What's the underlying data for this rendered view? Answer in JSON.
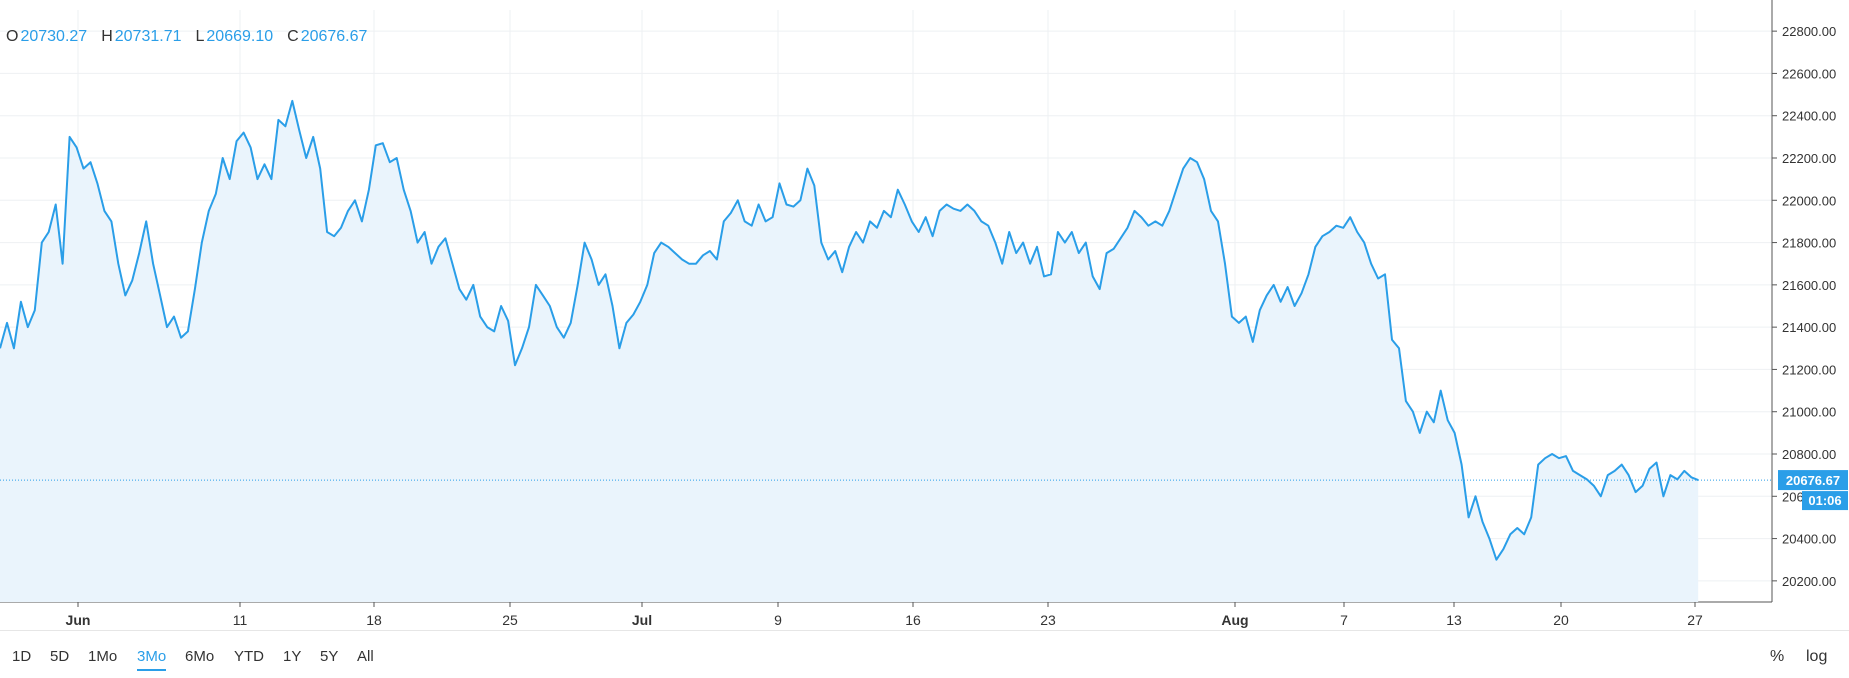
{
  "ohlc": {
    "open_label": "O",
    "open_value": "20730.27",
    "high_label": "H",
    "high_value": "20731.71",
    "low_label": "L",
    "low_value": "20669.10",
    "close_label": "C",
    "close_value": "20676.67"
  },
  "last_price_badge": "20676.67",
  "countdown_badge": "01:06",
  "range_buttons": [
    "1D",
    "5D",
    "1Mo",
    "3Mo",
    "6Mo",
    "YTD",
    "1Y",
    "5Y",
    "All"
  ],
  "active_range": "3Mo",
  "scale_buttons": {
    "percent": "%",
    "log": "log"
  },
  "colors": {
    "line": "#2a9ee8",
    "area": "#eaf4fc",
    "grid": "#eef0f3",
    "badge": "#2a9ee8"
  },
  "chart_data": {
    "type": "area",
    "x_tick_labels": [
      "Jun",
      "11",
      "18",
      "25",
      "Jul",
      "9",
      "16",
      "23",
      "Aug",
      "7",
      "13",
      "20",
      "27"
    ],
    "x_tick_bold": [
      "Jun",
      "Jul",
      "Aug"
    ],
    "y_tick_labels": [
      "20200.00",
      "20400.00",
      "20600.00",
      "20800.00",
      "21000.00",
      "21200.00",
      "21400.00",
      "21600.00",
      "21800.00",
      "22000.00",
      "22200.00",
      "22400.00",
      "22600.00",
      "22800.00"
    ],
    "ylim": [
      20100,
      22900
    ],
    "last_value": 20676.67,
    "x_index_range": [
      0,
      100
    ],
    "series": [
      {
        "values": [
          [
            0,
            21300
          ],
          [
            0.4,
            21420
          ],
          [
            0.8,
            21300
          ],
          [
            1.2,
            21520
          ],
          [
            1.6,
            21400
          ],
          [
            2.0,
            21480
          ],
          [
            2.4,
            21800
          ],
          [
            2.8,
            21850
          ],
          [
            3.2,
            21980
          ],
          [
            3.6,
            21700
          ],
          [
            4.0,
            22300
          ],
          [
            4.4,
            22250
          ],
          [
            4.8,
            22150
          ],
          [
            5.2,
            22180
          ],
          [
            5.6,
            22080
          ],
          [
            6.0,
            21950
          ],
          [
            6.4,
            21900
          ],
          [
            6.8,
            21700
          ],
          [
            7.2,
            21550
          ],
          [
            7.6,
            21620
          ],
          [
            8.0,
            21750
          ],
          [
            8.4,
            21900
          ],
          [
            8.8,
            21700
          ],
          [
            9.2,
            21550
          ],
          [
            9.6,
            21400
          ],
          [
            10.0,
            21450
          ],
          [
            10.4,
            21350
          ],
          [
            10.8,
            21380
          ],
          [
            11.2,
            21580
          ],
          [
            11.6,
            21800
          ],
          [
            12.0,
            21950
          ],
          [
            12.4,
            22030
          ],
          [
            12.8,
            22200
          ],
          [
            13.2,
            22100
          ],
          [
            13.6,
            22280
          ],
          [
            14.0,
            22320
          ],
          [
            14.4,
            22250
          ],
          [
            14.8,
            22100
          ],
          [
            15.2,
            22170
          ],
          [
            15.6,
            22100
          ],
          [
            16.0,
            22380
          ],
          [
            16.4,
            22350
          ],
          [
            16.8,
            22470
          ],
          [
            17.2,
            22330
          ],
          [
            17.6,
            22200
          ],
          [
            18.0,
            22300
          ],
          [
            18.4,
            22150
          ],
          [
            18.8,
            21850
          ],
          [
            19.2,
            21830
          ],
          [
            19.6,
            21870
          ],
          [
            20.0,
            21950
          ],
          [
            20.4,
            22000
          ],
          [
            20.8,
            21900
          ],
          [
            21.2,
            22050
          ],
          [
            21.6,
            22260
          ],
          [
            22.0,
            22270
          ],
          [
            22.4,
            22180
          ],
          [
            22.8,
            22200
          ],
          [
            23.2,
            22050
          ],
          [
            23.6,
            21950
          ],
          [
            24.0,
            21800
          ],
          [
            24.4,
            21850
          ],
          [
            24.8,
            21700
          ],
          [
            25.2,
            21780
          ],
          [
            25.6,
            21820
          ],
          [
            26.0,
            21700
          ],
          [
            26.4,
            21580
          ],
          [
            26.8,
            21530
          ],
          [
            27.2,
            21600
          ],
          [
            27.6,
            21450
          ],
          [
            28.0,
            21400
          ],
          [
            28.4,
            21380
          ],
          [
            28.8,
            21500
          ],
          [
            29.2,
            21430
          ],
          [
            29.6,
            21220
          ],
          [
            30.0,
            21300
          ],
          [
            30.4,
            21400
          ],
          [
            30.8,
            21600
          ],
          [
            31.2,
            21550
          ],
          [
            31.6,
            21500
          ],
          [
            32.0,
            21400
          ],
          [
            32.4,
            21350
          ],
          [
            32.8,
            21420
          ],
          [
            33.2,
            21600
          ],
          [
            33.6,
            21800
          ],
          [
            34.0,
            21720
          ],
          [
            34.4,
            21600
          ],
          [
            34.8,
            21650
          ],
          [
            35.2,
            21500
          ],
          [
            35.6,
            21300
          ],
          [
            36.0,
            21420
          ],
          [
            36.4,
            21460
          ],
          [
            36.8,
            21520
          ],
          [
            37.2,
            21600
          ],
          [
            37.6,
            21750
          ],
          [
            38.0,
            21800
          ],
          [
            38.4,
            21780
          ],
          [
            38.8,
            21750
          ],
          [
            39.2,
            21720
          ],
          [
            39.6,
            21700
          ],
          [
            40.0,
            21700
          ],
          [
            40.4,
            21740
          ],
          [
            40.8,
            21760
          ],
          [
            41.2,
            21720
          ],
          [
            41.6,
            21900
          ],
          [
            42.0,
            21940
          ],
          [
            42.4,
            22000
          ],
          [
            42.8,
            21900
          ],
          [
            43.2,
            21880
          ],
          [
            43.6,
            21980
          ],
          [
            44.0,
            21900
          ],
          [
            44.4,
            21920
          ],
          [
            44.8,
            22080
          ],
          [
            45.2,
            21980
          ],
          [
            45.6,
            21970
          ],
          [
            46.0,
            22000
          ],
          [
            46.4,
            22150
          ],
          [
            46.8,
            22070
          ],
          [
            47.2,
            21800
          ],
          [
            47.6,
            21720
          ],
          [
            48.0,
            21760
          ],
          [
            48.4,
            21660
          ],
          [
            48.8,
            21780
          ],
          [
            49.2,
            21850
          ],
          [
            49.6,
            21800
          ],
          [
            50.0,
            21900
          ],
          [
            50.4,
            21870
          ],
          [
            50.8,
            21950
          ],
          [
            51.2,
            21920
          ],
          [
            51.6,
            22050
          ],
          [
            52.0,
            21980
          ],
          [
            52.4,
            21900
          ],
          [
            52.8,
            21850
          ],
          [
            53.2,
            21920
          ],
          [
            53.6,
            21830
          ],
          [
            54.0,
            21950
          ],
          [
            54.4,
            21980
          ],
          [
            54.8,
            21960
          ],
          [
            55.2,
            21950
          ],
          [
            55.6,
            21980
          ],
          [
            56.0,
            21950
          ],
          [
            56.4,
            21900
          ],
          [
            56.8,
            21880
          ],
          [
            57.2,
            21800
          ],
          [
            57.6,
            21700
          ],
          [
            58.0,
            21850
          ],
          [
            58.4,
            21750
          ],
          [
            58.8,
            21800
          ],
          [
            59.2,
            21700
          ],
          [
            59.6,
            21780
          ],
          [
            60.0,
            21640
          ],
          [
            60.4,
            21650
          ],
          [
            60.8,
            21850
          ],
          [
            61.2,
            21800
          ],
          [
            61.6,
            21850
          ],
          [
            62.0,
            21750
          ],
          [
            62.4,
            21800
          ],
          [
            62.8,
            21640
          ],
          [
            63.2,
            21580
          ],
          [
            63.6,
            21750
          ],
          [
            64.0,
            21770
          ],
          [
            64.4,
            21820
          ],
          [
            64.8,
            21870
          ],
          [
            65.2,
            21950
          ],
          [
            65.6,
            21920
          ],
          [
            66.0,
            21880
          ],
          [
            66.4,
            21900
          ],
          [
            66.8,
            21880
          ],
          [
            67.2,
            21950
          ],
          [
            67.6,
            22050
          ],
          [
            68.0,
            22150
          ],
          [
            68.4,
            22200
          ],
          [
            68.8,
            22180
          ],
          [
            69.2,
            22100
          ],
          [
            69.6,
            21950
          ],
          [
            70.0,
            21900
          ],
          [
            70.4,
            21700
          ],
          [
            70.8,
            21450
          ],
          [
            71.2,
            21420
          ],
          [
            71.6,
            21450
          ],
          [
            72.0,
            21330
          ],
          [
            72.4,
            21480
          ],
          [
            72.8,
            21550
          ],
          [
            73.2,
            21600
          ],
          [
            73.6,
            21520
          ],
          [
            74.0,
            21590
          ],
          [
            74.4,
            21500
          ],
          [
            74.8,
            21560
          ],
          [
            75.2,
            21650
          ],
          [
            75.6,
            21780
          ],
          [
            76.0,
            21830
          ],
          [
            76.4,
            21850
          ],
          [
            76.8,
            21880
          ],
          [
            77.2,
            21870
          ],
          [
            77.6,
            21920
          ],
          [
            78.0,
            21850
          ],
          [
            78.4,
            21800
          ],
          [
            78.8,
            21700
          ],
          [
            79.2,
            21630
          ],
          [
            79.6,
            21650
          ],
          [
            80.0,
            21340
          ],
          [
            80.4,
            21300
          ],
          [
            80.8,
            21050
          ],
          [
            81.2,
            21000
          ],
          [
            81.6,
            20900
          ],
          [
            82.0,
            21000
          ],
          [
            82.4,
            20950
          ],
          [
            82.8,
            21100
          ],
          [
            83.2,
            20960
          ],
          [
            83.6,
            20900
          ],
          [
            84.0,
            20750
          ],
          [
            84.4,
            20500
          ],
          [
            84.8,
            20600
          ],
          [
            85.2,
            20480
          ],
          [
            85.6,
            20400
          ],
          [
            86.0,
            20300
          ],
          [
            86.4,
            20350
          ],
          [
            86.8,
            20420
          ],
          [
            87.2,
            20450
          ],
          [
            87.6,
            20420
          ],
          [
            88.0,
            20500
          ],
          [
            88.4,
            20750
          ],
          [
            88.8,
            20780
          ],
          [
            89.2,
            20800
          ],
          [
            89.6,
            20780
          ],
          [
            90.0,
            20790
          ],
          [
            90.4,
            20720
          ],
          [
            90.8,
            20700
          ],
          [
            91.2,
            20680
          ],
          [
            91.6,
            20650
          ],
          [
            92.0,
            20600
          ],
          [
            92.4,
            20700
          ],
          [
            92.8,
            20720
          ],
          [
            93.2,
            20750
          ],
          [
            93.6,
            20700
          ],
          [
            94.0,
            20620
          ],
          [
            94.4,
            20650
          ],
          [
            94.8,
            20730
          ],
          [
            95.2,
            20760
          ],
          [
            95.6,
            20600
          ],
          [
            96.0,
            20700
          ],
          [
            96.4,
            20680
          ],
          [
            96.8,
            20720
          ],
          [
            97.2,
            20690
          ],
          [
            97.6,
            20676.67
          ]
        ]
      }
    ]
  }
}
